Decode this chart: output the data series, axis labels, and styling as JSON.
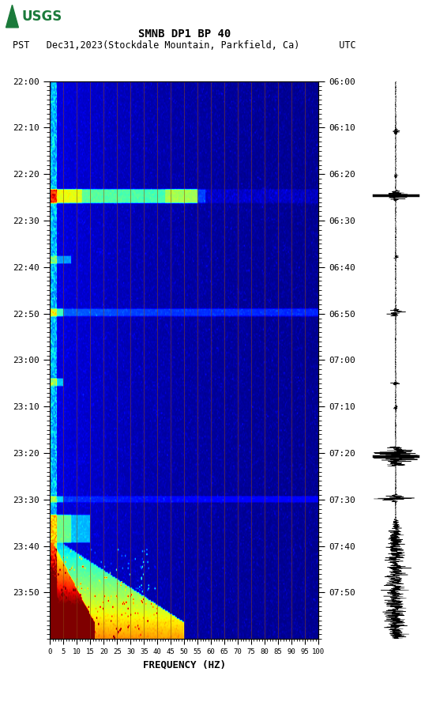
{
  "title_line1": "SMNB DP1 BP 40",
  "title_line2": "PST   Dec31,2023(Stockdale Mountain, Parkfield, Ca)       UTC",
  "xlabel": "FREQUENCY (HZ)",
  "freq_ticks": [
    0,
    5,
    10,
    15,
    20,
    25,
    30,
    35,
    40,
    45,
    50,
    55,
    60,
    65,
    70,
    75,
    80,
    85,
    90,
    95,
    100
  ],
  "time_labels_left": [
    "22:00",
    "22:10",
    "22:20",
    "22:30",
    "22:40",
    "22:50",
    "23:00",
    "23:10",
    "23:20",
    "23:30",
    "23:40",
    "23:50"
  ],
  "time_labels_right": [
    "06:00",
    "06:10",
    "06:20",
    "06:30",
    "06:40",
    "06:50",
    "07:00",
    "07:10",
    "07:20",
    "07:30",
    "07:40",
    "07:50"
  ],
  "freq_grid_lines": [
    5,
    10,
    15,
    20,
    25,
    30,
    35,
    40,
    45,
    50,
    55,
    60,
    65,
    70,
    75,
    80,
    85,
    90,
    95,
    100
  ],
  "fig_width": 5.52,
  "fig_height": 8.93,
  "bg_color": "#ffffff",
  "n_freq": 300,
  "n_time": 360,
  "random_seed": 7
}
